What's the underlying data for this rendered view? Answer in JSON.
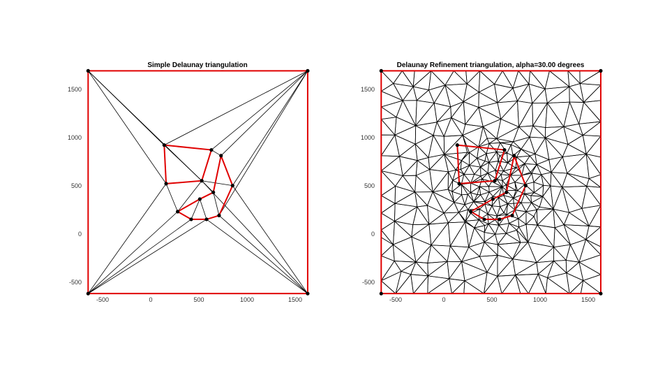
{
  "figure": {
    "background": "#ffffff"
  },
  "colors": {
    "boundary": "#e00000",
    "mesh": "#000000",
    "vertex": "#000000"
  },
  "panels": [
    {
      "id": "simple",
      "title": "Simple Delaunay triangulation",
      "x_ticks": [
        "-500",
        "0",
        "500",
        "1000",
        "1500"
      ],
      "y_ticks": [
        "-500",
        "0",
        "500",
        "1000",
        "1500"
      ]
    },
    {
      "id": "refined",
      "title": "Delaunay Refinement triangulation, alpha=30.00 degrees",
      "x_ticks": [
        "-500",
        "0",
        "500",
        "1000",
        "1500"
      ],
      "y_ticks": [
        "-500",
        "0",
        "500",
        "1000",
        "1500"
      ]
    }
  ],
  "chart_data": {
    "type": "diagram",
    "xlim": [
      -700,
      1650
    ],
    "ylim": [
      -620,
      1700
    ],
    "outer_square": [
      [
        -650,
        -610
      ],
      [
        1630,
        -610
      ],
      [
        1630,
        1700
      ],
      [
        -650,
        1700
      ]
    ],
    "inner_polygon": [
      [
        140,
        930
      ],
      [
        630,
        880
      ],
      [
        530,
        560
      ],
      [
        160,
        530
      ]
    ],
    "inner_polygon_2": [
      [
        730,
        820
      ],
      [
        850,
        510
      ],
      [
        710,
        200
      ],
      [
        580,
        160
      ],
      [
        420,
        160
      ],
      [
        280,
        240
      ],
      [
        510,
        370
      ],
      [
        650,
        440
      ]
    ],
    "simple_edges": [
      [
        [
          -650,
          1700
        ],
        [
          140,
          930
        ]
      ],
      [
        [
          -650,
          1700
        ],
        [
          160,
          530
        ]
      ],
      [
        [
          -650,
          1700
        ],
        [
          530,
          560
        ]
      ],
      [
        [
          -650,
          1700
        ],
        [
          1630,
          1700
        ]
      ],
      [
        [
          1630,
          1700
        ],
        [
          140,
          930
        ]
      ],
      [
        [
          1630,
          1700
        ],
        [
          630,
          880
        ]
      ],
      [
        [
          1630,
          1700
        ],
        [
          730,
          820
        ]
      ],
      [
        [
          1630,
          1700
        ],
        [
          850,
          510
        ]
      ],
      [
        [
          1630,
          1700
        ],
        [
          710,
          200
        ]
      ],
      [
        [
          -650,
          -610
        ],
        [
          160,
          530
        ]
      ],
      [
        [
          -650,
          -610
        ],
        [
          280,
          240
        ]
      ],
      [
        [
          -650,
          -610
        ],
        [
          420,
          160
        ]
      ],
      [
        [
          -650,
          -610
        ],
        [
          580,
          160
        ]
      ],
      [
        [
          -650,
          -610
        ],
        [
          1630,
          -610
        ]
      ],
      [
        [
          1630,
          -610
        ],
        [
          850,
          510
        ]
      ],
      [
        [
          1630,
          -610
        ],
        [
          710,
          200
        ]
      ],
      [
        [
          1630,
          -610
        ],
        [
          580,
          160
        ]
      ],
      [
        [
          1630,
          -610
        ],
        [
          530,
          560
        ]
      ],
      [
        [
          530,
          560
        ],
        [
          850,
          510
        ]
      ],
      [
        [
          530,
          560
        ],
        [
          650,
          440
        ]
      ],
      [
        [
          510,
          370
        ],
        [
          580,
          160
        ]
      ],
      [
        [
          510,
          370
        ],
        [
          420,
          160
        ]
      ],
      [
        [
          650,
          440
        ],
        [
          710,
          200
        ]
      ],
      [
        [
          530,
          560
        ],
        [
          280,
          240
        ]
      ],
      [
        [
          630,
          880
        ],
        [
          730,
          820
        ]
      ],
      [
        [
          140,
          930
        ],
        [
          530,
          560
        ]
      ],
      [
        [
          160,
          530
        ],
        [
          280,
          240
        ]
      ]
    ]
  }
}
